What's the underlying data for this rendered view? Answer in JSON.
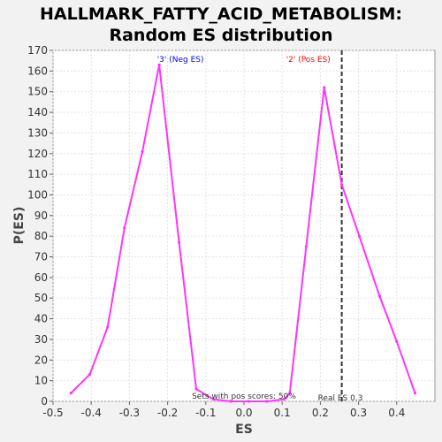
{
  "chart_data": {
    "type": "line",
    "title_lines": [
      "HALLMARK_FATTY_ACID_METABOLISM:",
      "Random ES distribution"
    ],
    "xlabel": "ES",
    "ylabel": "P(ES)",
    "xlim": [
      -0.5,
      0.5
    ],
    "ylim": [
      0,
      170
    ],
    "x_ticks": [
      -0.5,
      -0.4,
      -0.3,
      -0.2,
      -0.1,
      0.0,
      0.1,
      0.2,
      0.3,
      0.4
    ],
    "x_tick_labels": [
      "-0.5",
      "-0.4",
      "-0.3",
      "-0.2",
      "-0.1",
      "0.0",
      "0.1",
      "0.2",
      "0.3",
      "0.4"
    ],
    "y_ticks": [
      0,
      10,
      20,
      30,
      40,
      50,
      60,
      70,
      80,
      90,
      100,
      110,
      120,
      130,
      140,
      150,
      160,
      170
    ],
    "grid": true,
    "series_color": "#ff33ff",
    "series": [
      {
        "x": [
          -0.453,
          -0.404,
          -0.357,
          -0.313,
          -0.266,
          -0.222,
          -0.17,
          -0.125,
          -0.08,
          -0.035,
          0.012,
          0.06,
          0.105,
          0.12,
          0.163,
          0.21,
          0.256,
          0.302,
          0.355,
          0.4,
          0.448
        ],
        "values": [
          4,
          13,
          36,
          84,
          121,
          163,
          77,
          6,
          1,
          0,
          0,
          0,
          1,
          4,
          75,
          152,
          105,
          80,
          51,
          29,
          4
        ]
      }
    ],
    "annotations": {
      "neg_label": "'3' (Neg ES)",
      "neg_label_color": "#0000ff",
      "pos_label": "'2' (Pos ES)",
      "pos_label_color": "#ff0000",
      "pos_scores_text": "Sets with pos scores: 50%",
      "real_es_text": "Real ES 0.3",
      "real_es_value": 0.256
    }
  }
}
